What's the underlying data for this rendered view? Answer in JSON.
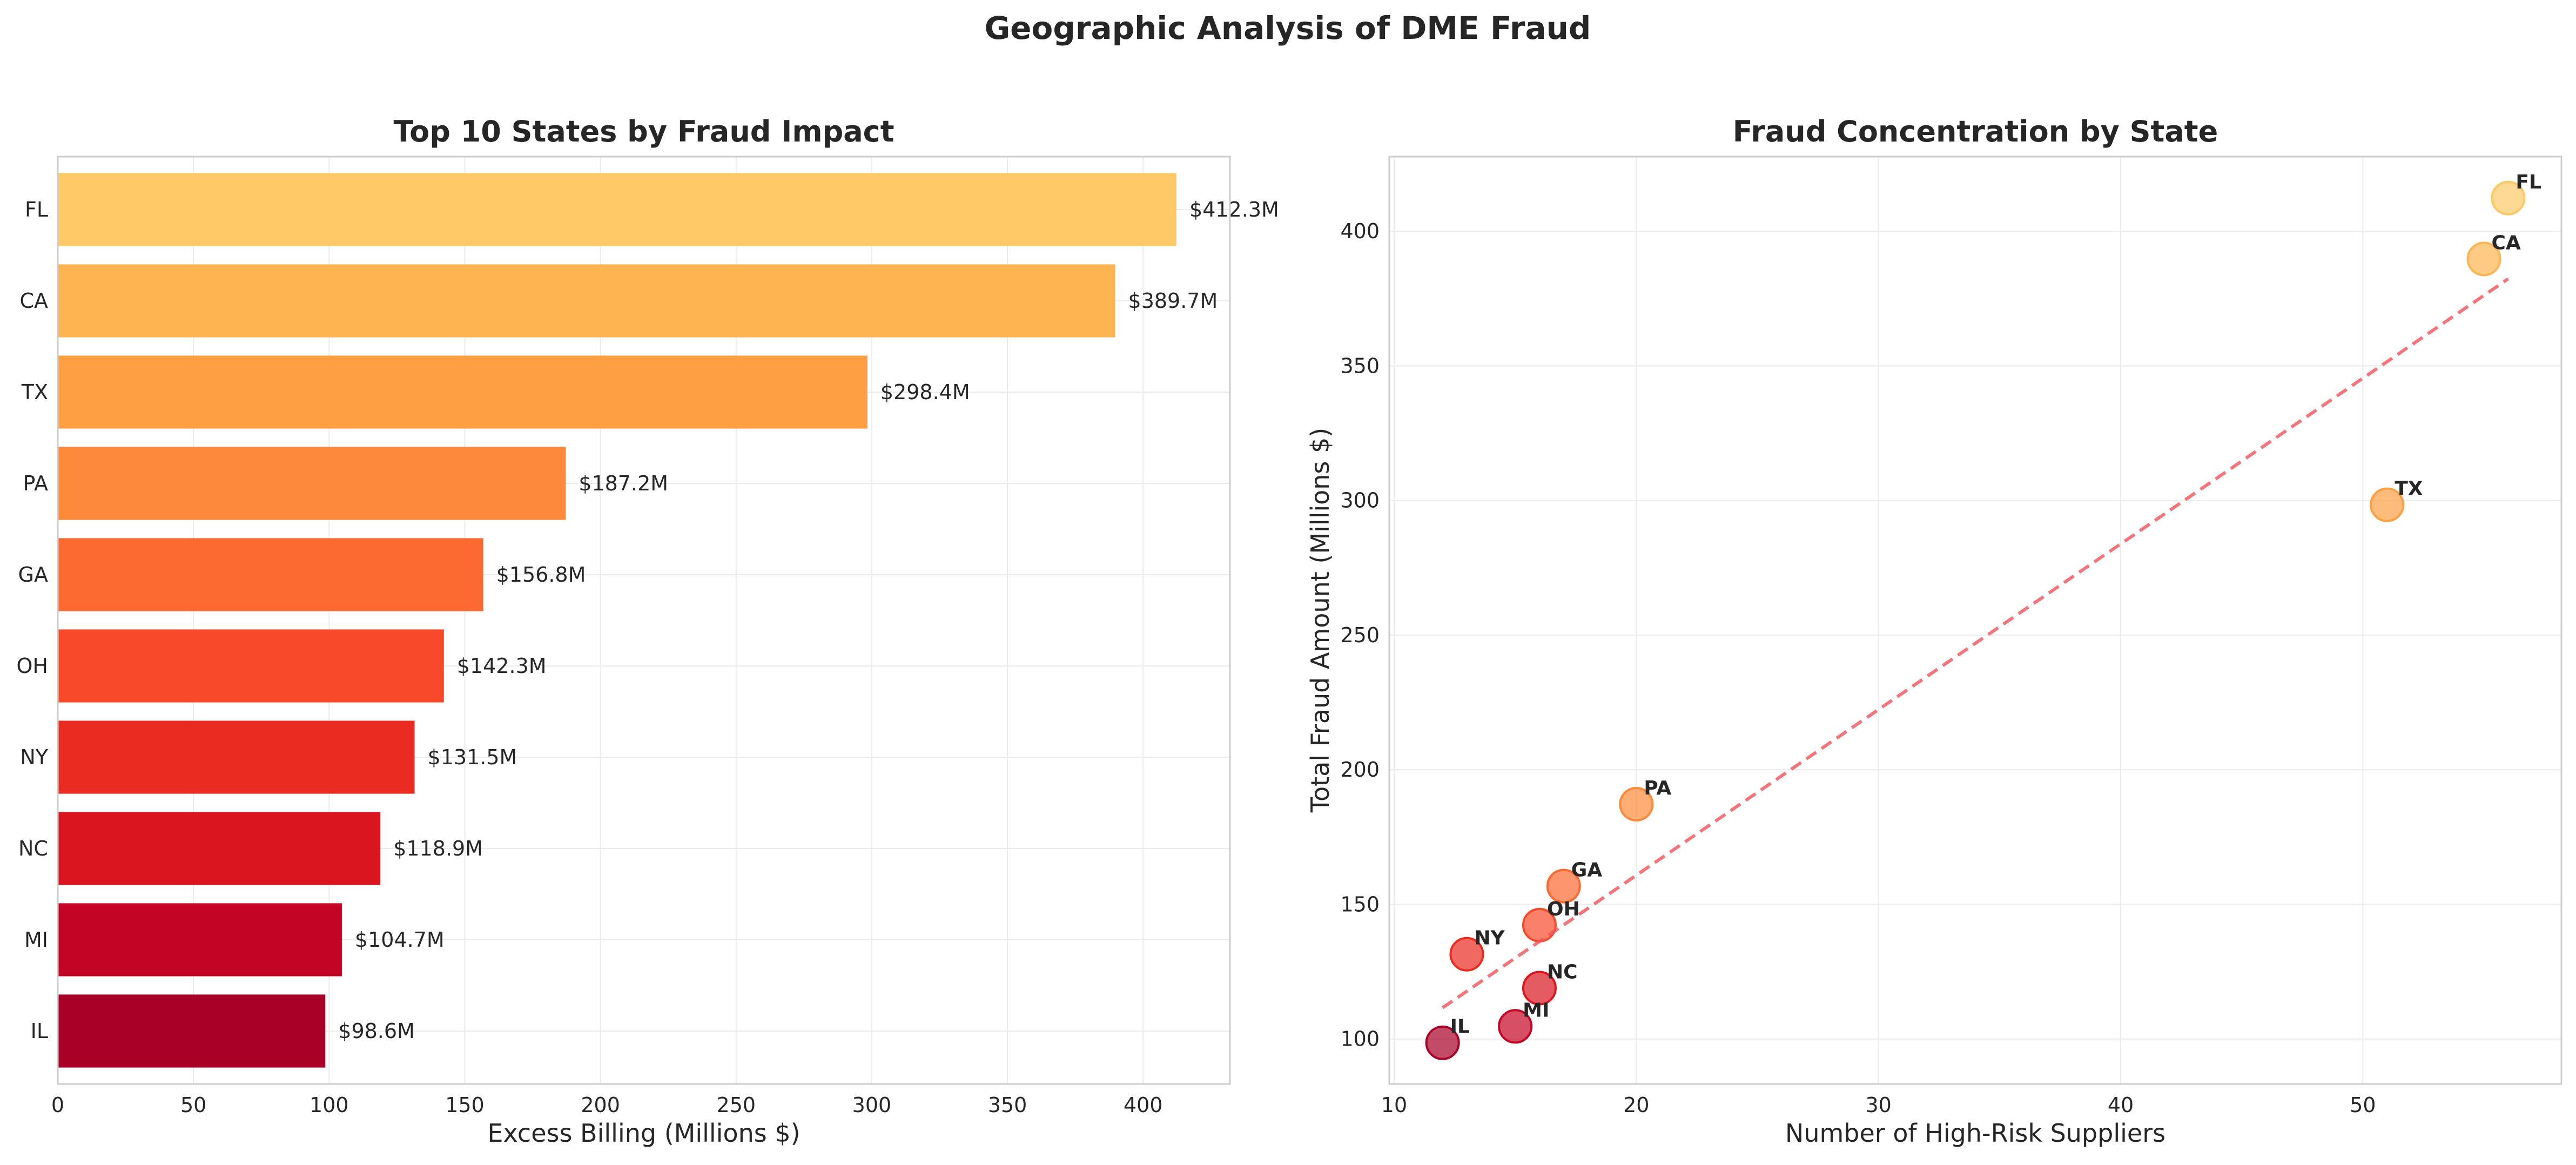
{
  "figure": {
    "title": "Geographic Analysis of DME Fraud"
  },
  "chart_data": [
    {
      "type": "bar",
      "orientation": "horizontal",
      "title": "Top 10 States by Fraud Impact",
      "xlabel": "Excess Billing (Millions $)",
      "ylabel": "",
      "categories": [
        "FL",
        "CA",
        "TX",
        "PA",
        "GA",
        "OH",
        "NY",
        "NC",
        "MI",
        "IL"
      ],
      "values": [
        412.3,
        389.7,
        298.4,
        187.2,
        156.8,
        142.3,
        131.5,
        118.9,
        104.7,
        98.6
      ],
      "data_labels": [
        "$412.3M",
        "$389.7M",
        "$298.4M",
        "$187.2M",
        "$156.8M",
        "$142.3M",
        "$131.5M",
        "$118.9M",
        "$104.7M",
        "$98.6M"
      ],
      "colors": [
        "#fec966",
        "#feb551",
        "#fe9f44",
        "#fd8a3b",
        "#fc6931",
        "#f84a2a",
        "#ea2b21",
        "#da151f",
        "#c40424",
        "#a80026"
      ],
      "xlim": [
        0,
        432
      ],
      "xticks": [
        0,
        50,
        100,
        150,
        200,
        250,
        300,
        350,
        400
      ],
      "grid": true
    },
    {
      "type": "scatter",
      "title": "Fraud Concentration by State",
      "xlabel": "Number of High-Risk Suppliers",
      "ylabel": "Total Fraud Amount (Millions $)",
      "points": [
        {
          "label": "FL",
          "x": 56,
          "y": 412.3,
          "color": "#fec966"
        },
        {
          "label": "CA",
          "x": 55,
          "y": 389.7,
          "color": "#feb551"
        },
        {
          "label": "TX",
          "x": 51,
          "y": 298.4,
          "color": "#fe9f44"
        },
        {
          "label": "PA",
          "x": 20,
          "y": 187.2,
          "color": "#fd8a3b"
        },
        {
          "label": "GA",
          "x": 17,
          "y": 156.8,
          "color": "#fc6931"
        },
        {
          "label": "OH",
          "x": 16,
          "y": 142.3,
          "color": "#f84a2a"
        },
        {
          "label": "NY",
          "x": 13,
          "y": 131.5,
          "color": "#ea2b21"
        },
        {
          "label": "NC",
          "x": 16,
          "y": 118.9,
          "color": "#da151f"
        },
        {
          "label": "MI",
          "x": 15,
          "y": 104.7,
          "color": "#c40424"
        },
        {
          "label": "IL",
          "x": 12,
          "y": 98.6,
          "color": "#a80026"
        }
      ],
      "trend_line": {
        "x": [
          12,
          56
        ],
        "y": [
          111.6,
          382.3
        ],
        "color": "#f0535a",
        "style": "dashed"
      },
      "xlim": [
        9.8,
        58.2
      ],
      "ylim": [
        83.3,
        427.7
      ],
      "xticks": [
        10,
        20,
        30,
        40,
        50
      ],
      "yticks": [
        100,
        150,
        200,
        250,
        300,
        350,
        400
      ],
      "grid": true
    }
  ]
}
